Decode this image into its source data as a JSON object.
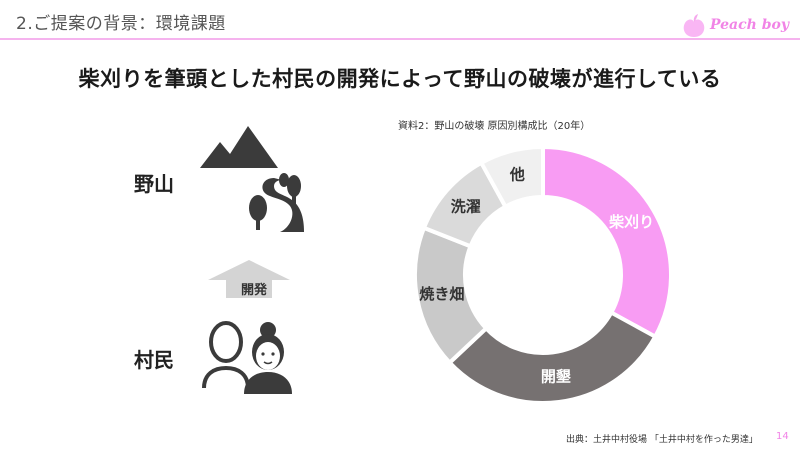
{
  "header": {
    "section_title": "2.ご提案の背景：環境課題",
    "brand": "Peach boy",
    "accent_color": "#f5b3ee"
  },
  "main_title": "柴刈りを筆頭とした村民の開発によって野山の破壊が進行している",
  "diagram": {
    "top_label": "野山",
    "bottom_label": "村民",
    "arrow_label": "開発",
    "icons": [
      "mountain-icon",
      "forest-path-icon",
      "villagers-icon",
      "up-arrow-icon"
    ]
  },
  "chart_data": {
    "type": "pie",
    "donut": true,
    "title": "資料2：野山の破壊 原因別構成比（20年）",
    "categories": [
      "柴刈り",
      "開墾",
      "焼き畑",
      "洗濯",
      "他"
    ],
    "values": [
      33,
      30,
      18,
      11,
      8
    ],
    "colors": [
      "#f89cf3",
      "#767171",
      "#c9c9c9",
      "#dadada",
      "#f0f0f0"
    ],
    "label_colors": [
      "#ffffff",
      "#ffffff",
      "#333333",
      "#333333",
      "#333333"
    ]
  },
  "footer": {
    "source": "出典：土井中村役場 「土井中村を作った男達」",
    "page": "14"
  }
}
